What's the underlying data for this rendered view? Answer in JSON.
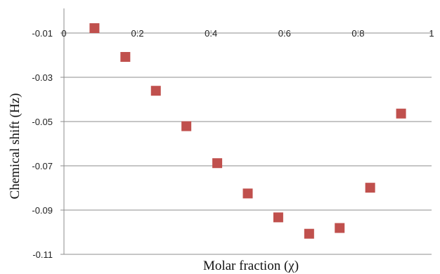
{
  "chart_data": {
    "type": "scatter",
    "xlabel": "Molar fraction (χ)",
    "ylabel": "Chemical shift (Hz)",
    "xlim": [
      0,
      1
    ],
    "ylim": [
      -0.11,
      -0.005
    ],
    "x_ticks": [
      0,
      0.2,
      0.4,
      0.6,
      0.8,
      1
    ],
    "x_tick_labels": [
      "0",
      "0.2",
      "0.4",
      "0.6",
      "0.8",
      "1"
    ],
    "y_ticks": [
      -0.01,
      -0.03,
      -0.05,
      -0.07,
      -0.09,
      -0.11
    ],
    "y_tick_labels": [
      "-0.01",
      "-0.03",
      "-0.05",
      "-0.07",
      "-0.09",
      "-0.11"
    ],
    "x_axis_position": "top",
    "grid": "horizontal",
    "legend": "none",
    "marker": "square",
    "series": [
      {
        "color": "#c0504d",
        "x": [
          0.083,
          0.167,
          0.25,
          0.333,
          0.417,
          0.5,
          0.583,
          0.667,
          0.75,
          0.833,
          0.917
        ],
        "y": [
          -0.0078,
          -0.0208,
          -0.0361,
          -0.0521,
          -0.0688,
          -0.0825,
          -0.0933,
          -0.1007,
          -0.0981,
          -0.0799,
          -0.0464
        ]
      }
    ]
  }
}
